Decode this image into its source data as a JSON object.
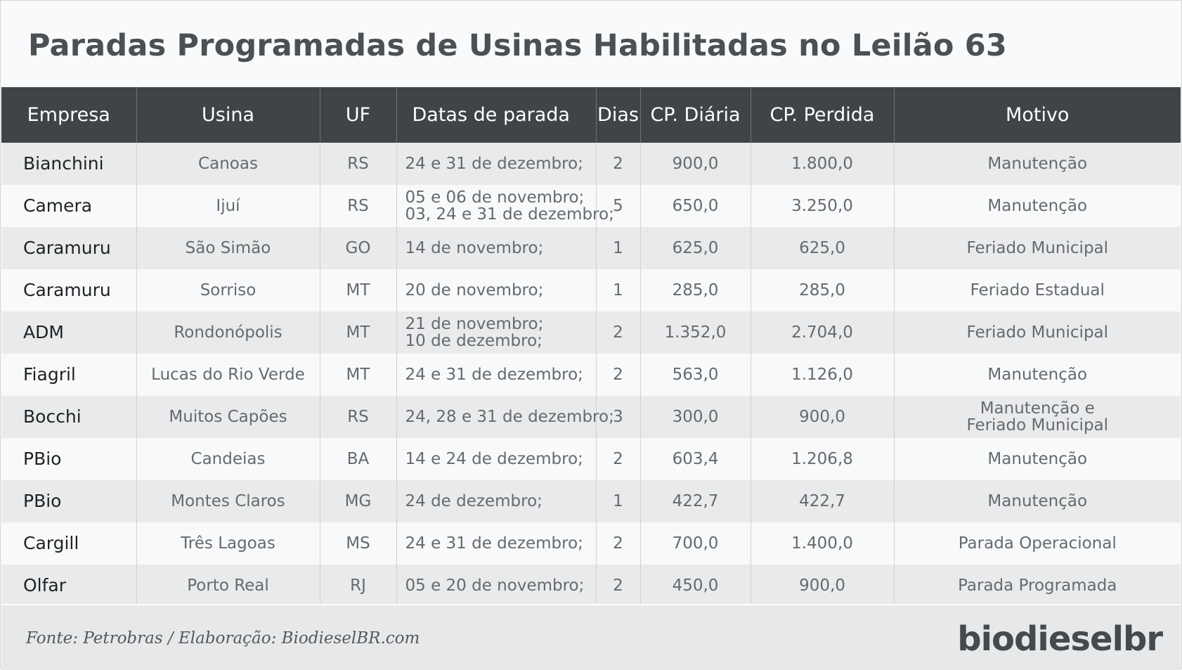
{
  "title": "Paradas Programadas de Usinas Habilitadas no Leilão 63",
  "columns": [
    "Empresa",
    "Usina",
    "UF",
    "Datas de parada",
    "Dias",
    "CP. Diária",
    "CP. Perdida",
    "Motivo"
  ],
  "rows": [
    {
      "empresa": "Bianchini",
      "usina": "Canoas",
      "uf": "RS",
      "datas": [
        "24 e 31 de dezembro;"
      ],
      "dias": "2",
      "cp_diaria": "900,0",
      "cp_perdida": "1.800,0",
      "motivo": [
        "Manutenção"
      ]
    },
    {
      "empresa": "Camera",
      "usina": "Ijuí",
      "uf": "RS",
      "datas": [
        "05 e 06 de novembro;",
        "03, 24 e 31 de dezembro;"
      ],
      "dias": "5",
      "cp_diaria": "650,0",
      "cp_perdida": "3.250,0",
      "motivo": [
        "Manutenção"
      ]
    },
    {
      "empresa": "Caramuru",
      "usina": "São Simão",
      "uf": "GO",
      "datas": [
        "14 de novembro;"
      ],
      "dias": "1",
      "cp_diaria": "625,0",
      "cp_perdida": "625,0",
      "motivo": [
        "Feriado Municipal"
      ]
    },
    {
      "empresa": "Caramuru",
      "usina": "Sorriso",
      "uf": "MT",
      "datas": [
        "20 de novembro;"
      ],
      "dias": "1",
      "cp_diaria": "285,0",
      "cp_perdida": "285,0",
      "motivo": [
        "Feriado Estadual"
      ]
    },
    {
      "empresa": "ADM",
      "usina": "Rondonópolis",
      "uf": "MT",
      "datas": [
        "21 de novembro;",
        "10 de dezembro;"
      ],
      "dias": "2",
      "cp_diaria": "1.352,0",
      "cp_perdida": "2.704,0",
      "motivo": [
        "Feriado Municipal"
      ]
    },
    {
      "empresa": "Fiagril",
      "usina": "Lucas do Rio Verde",
      "uf": "MT",
      "datas": [
        "24 e 31 de dezembro;"
      ],
      "dias": "2",
      "cp_diaria": "563,0",
      "cp_perdida": "1.126,0",
      "motivo": [
        "Manutenção"
      ]
    },
    {
      "empresa": "Bocchi",
      "usina": "Muitos Capões",
      "uf": "RS",
      "datas": [
        "24, 28 e 31 de dezembro;"
      ],
      "dias": "3",
      "cp_diaria": "300,0",
      "cp_perdida": "900,0",
      "motivo": [
        "Manutenção e",
        "Feriado Municipal"
      ]
    },
    {
      "empresa": "PBio",
      "usina": "Candeias",
      "uf": "BA",
      "datas": [
        "14 e 24 de dezembro;"
      ],
      "dias": "2",
      "cp_diaria": "603,4",
      "cp_perdida": "1.206,8",
      "motivo": [
        "Manutenção"
      ]
    },
    {
      "empresa": "PBio",
      "usina": "Montes Claros",
      "uf": "MG",
      "datas": [
        "24 de dezembro;"
      ],
      "dias": "1",
      "cp_diaria": "422,7",
      "cp_perdida": "422,7",
      "motivo": [
        "Manutenção"
      ]
    },
    {
      "empresa": "Cargill",
      "usina": "Três Lagoas",
      "uf": "MS",
      "datas": [
        "24 e 31 de dezembro;"
      ],
      "dias": "2",
      "cp_diaria": "700,0",
      "cp_perdida": "1.400,0",
      "motivo": [
        "Parada Operacional"
      ]
    },
    {
      "empresa": "Olfar",
      "usina": "Porto Real",
      "uf": "RJ",
      "datas": [
        "05 e 20 de novembro;"
      ],
      "dias": "2",
      "cp_diaria": "450,0",
      "cp_perdida": "900,0",
      "motivo": [
        "Parada Programada"
      ]
    }
  ],
  "footer": {
    "source": "Fonte: Petrobras / Elaboração: BiodieselBR.com",
    "logo": "biodieselbr"
  },
  "chart_data": {
    "type": "table",
    "title": "Paradas Programadas de Usinas Habilitadas no Leilão 63",
    "columns": [
      "Empresa",
      "Usina",
      "UF",
      "Datas de parada",
      "Dias",
      "CP. Diária",
      "CP. Perdida",
      "Motivo"
    ],
    "rows": [
      [
        "Bianchini",
        "Canoas",
        "RS",
        "24 e 31 de dezembro;",
        2,
        900.0,
        1800.0,
        "Manutenção"
      ],
      [
        "Camera",
        "Ijuí",
        "RS",
        "05 e 06 de novembro; 03, 24 e 31 de dezembro;",
        5,
        650.0,
        3250.0,
        "Manutenção"
      ],
      [
        "Caramuru",
        "São Simão",
        "GO",
        "14 de novembro;",
        1,
        625.0,
        625.0,
        "Feriado Municipal"
      ],
      [
        "Caramuru",
        "Sorriso",
        "MT",
        "20 de novembro;",
        1,
        285.0,
        285.0,
        "Feriado Estadual"
      ],
      [
        "ADM",
        "Rondonópolis",
        "MT",
        "21 de novembro; 10 de dezembro;",
        2,
        1352.0,
        2704.0,
        "Feriado Municipal"
      ],
      [
        "Fiagril",
        "Lucas do Rio Verde",
        "MT",
        "24 e 31 de dezembro;",
        2,
        563.0,
        1126.0,
        "Manutenção"
      ],
      [
        "Bocchi",
        "Muitos Capões",
        "RS",
        "24, 28 e 31 de dezembro;",
        3,
        300.0,
        900.0,
        "Manutenção e Feriado Municipal"
      ],
      [
        "PBio",
        "Candeias",
        "BA",
        "14 e 24 de dezembro;",
        2,
        603.4,
        1206.8,
        "Manutenção"
      ],
      [
        "PBio",
        "Montes Claros",
        "MG",
        "24 de dezembro;",
        1,
        422.7,
        422.7,
        "Manutenção"
      ],
      [
        "Cargill",
        "Três Lagoas",
        "MS",
        "24 e 31 de dezembro;",
        2,
        700.0,
        1400.0,
        "Parada Operacional"
      ],
      [
        "Olfar",
        "Porto Real",
        "RJ",
        "05 e 20 de novembro;",
        2,
        450.0,
        900.0,
        "Parada Programada"
      ]
    ]
  }
}
